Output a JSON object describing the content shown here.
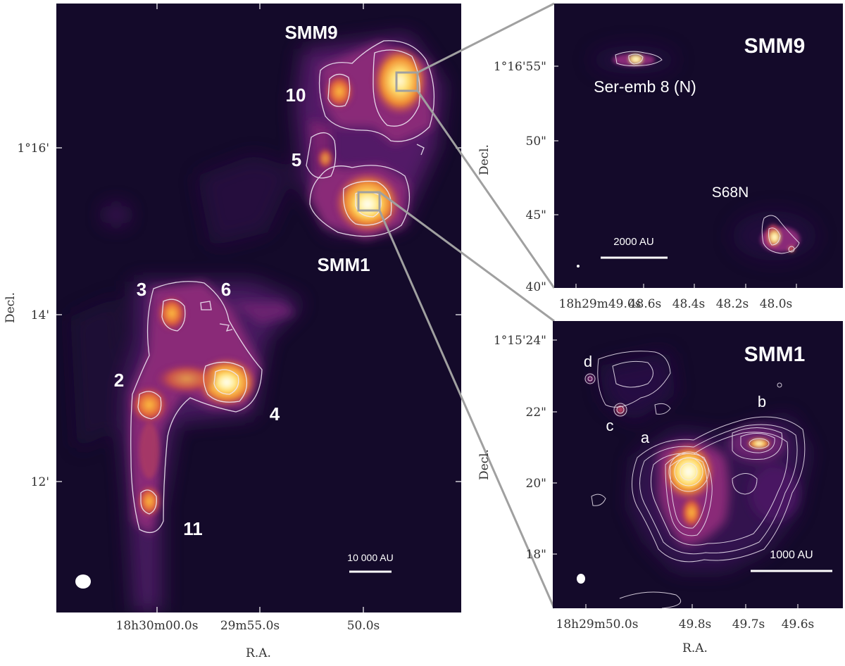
{
  "main_panel": {
    "x_axis_label": "R.A.",
    "y_axis_label": "Decl.",
    "x_ticks": [
      "18h30m00.0s",
      "29m55.0s",
      "50.0s"
    ],
    "y_ticks": [
      "1°16'",
      "14'",
      "12'"
    ],
    "scale_bar": "10 000 AU",
    "region_labels": [
      "SMM9",
      "SMM1"
    ],
    "source_labels": [
      "10",
      "5",
      "3",
      "6",
      "2",
      "4",
      "11"
    ]
  },
  "smm9_panel": {
    "title": "SMM9",
    "y_axis_label": "Decl.",
    "x_ticks": [
      "18h29m49.0s",
      "48.6s",
      "48.4s",
      "48.2s",
      "48.0s"
    ],
    "y_ticks": [
      "1°16'55\"",
      "50\"",
      "45\"",
      "40\""
    ],
    "scale_bar": "2000 AU",
    "source_labels": [
      "Ser-emb 8 (N)",
      "S68N"
    ]
  },
  "smm1_panel": {
    "title": "SMM1",
    "x_axis_label": "R.A.",
    "y_axis_label": "Decl.",
    "x_ticks": [
      "18h29m50.0s",
      "49.8s",
      "49.7s",
      "49.6s"
    ],
    "y_ticks": [
      "1°15'24\"",
      "22\"",
      "20\"",
      "18\""
    ],
    "scale_bar": "1000 AU",
    "source_labels": [
      "a",
      "b",
      "c",
      "d"
    ]
  },
  "colors": {
    "background": "#140a2a",
    "connector": "#a0a0a0",
    "contour": "#f0e8f4"
  }
}
